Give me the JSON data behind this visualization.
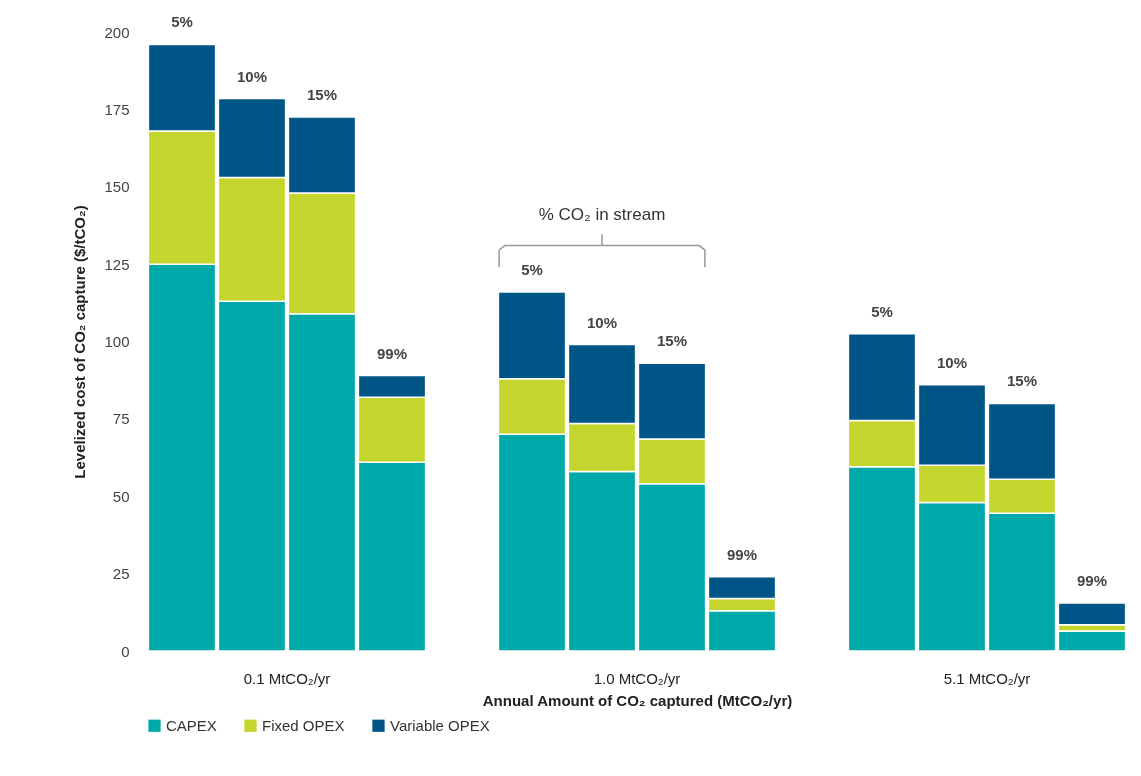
{
  "chart_data": {
    "type": "bar",
    "stacked": true,
    "xlabel": "Annual Amount of CO₂ captured (MtCO₂/yr)",
    "ylabel": "Levelized cost of CO₂ capture ($/tCO₂)",
    "categories": [
      "5%",
      "10%",
      "15%",
      "99%",
      "5%",
      "10%",
      "15%",
      "99%",
      "5%",
      "10%",
      "15%",
      "99%"
    ],
    "series": [
      {
        "name": "CAPEX",
        "color": "#00a9a9",
        "values": [
          125,
          113,
          109,
          61,
          70,
          58,
          54,
          13,
          59.5,
          48,
          44.5,
          6.5
        ]
      },
      {
        "name": "Fixed OPEX",
        "color": "#c4d62e",
        "values": [
          43,
          40,
          39,
          21,
          18,
          15.5,
          14.5,
          4,
          15,
          12,
          11,
          2
        ]
      },
      {
        "name": "Variable OPEX",
        "color": "#005587",
        "values": [
          28,
          25.5,
          24.5,
          7,
          28,
          25.5,
          24.5,
          7,
          28,
          26,
          24.5,
          7
        ]
      }
    ],
    "ylim": [
      0,
      200
    ],
    "yticks": [
      0,
      25,
      50,
      75,
      100,
      125,
      150,
      175,
      200
    ],
    "grid": false,
    "legend": "bottom",
    "annotations": [
      "0.1 MtCO₂/yr",
      "1.0 MtCO₂/yr",
      "5.1 MtCO₂/yr",
      "% CO₂ in stream"
    ]
  }
}
